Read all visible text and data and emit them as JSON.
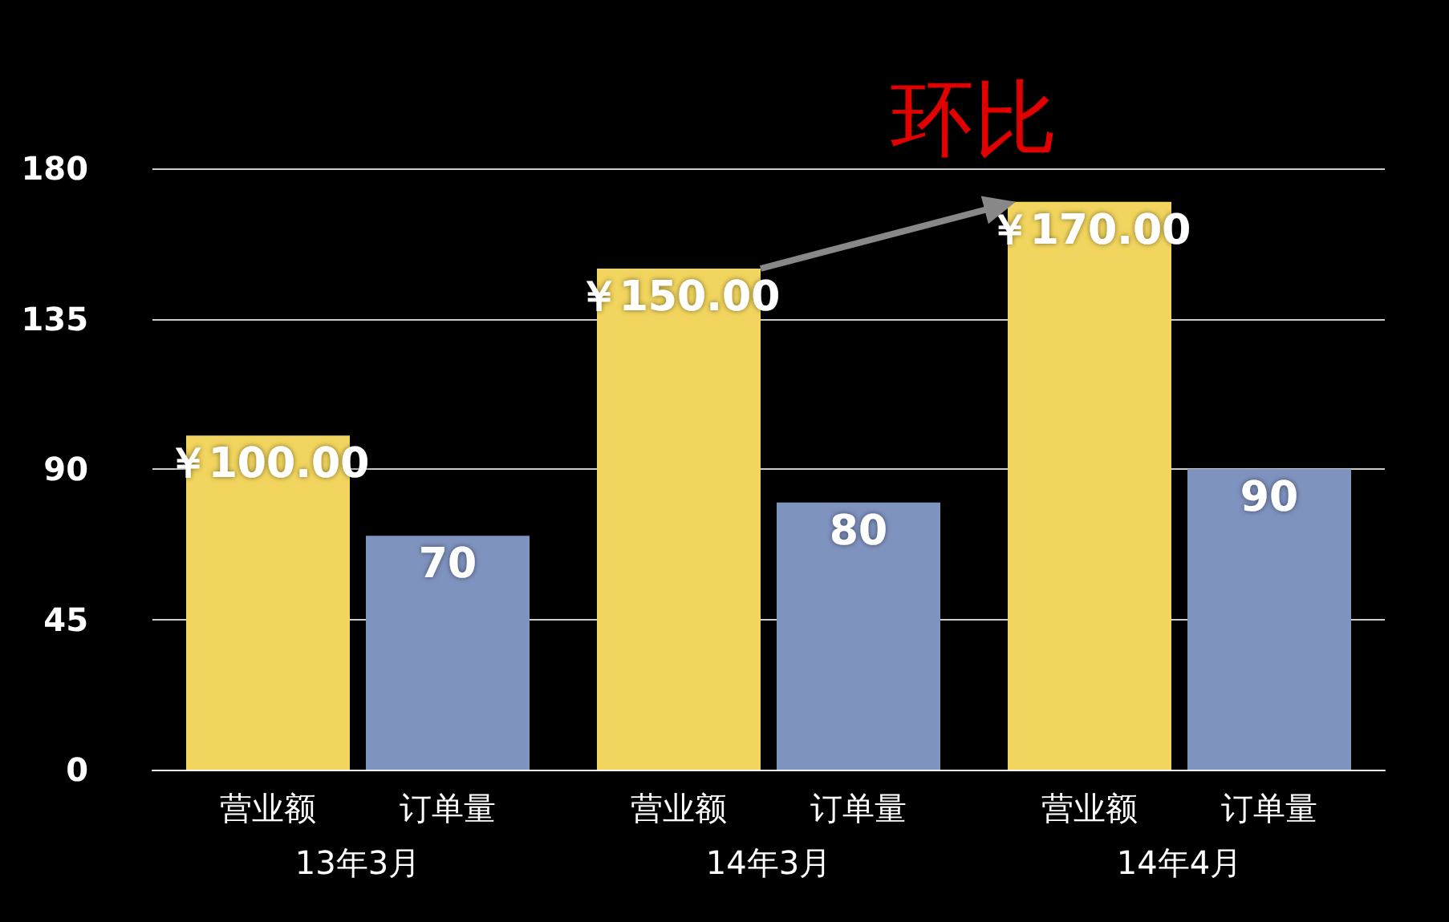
{
  "chart_data": {
    "type": "bar",
    "categories": [
      "13年3月",
      "14年3月",
      "14年4月"
    ],
    "series": [
      {
        "name": "营业额",
        "color": "#f1d55e",
        "values": [
          100,
          150,
          170
        ],
        "value_labels": [
          "￥100.00",
          "￥150.00",
          "￥170.00"
        ]
      },
      {
        "name": "订单量",
        "color": "#7f93bf",
        "values": [
          70,
          80,
          90
        ],
        "value_labels": [
          "70",
          "80",
          "90"
        ]
      }
    ],
    "ylim": [
      0,
      180
    ],
    "yticks": [
      0,
      45,
      90,
      135,
      180
    ],
    "grid": "y",
    "legend": false,
    "annotations": [
      {
        "text": "环比",
        "x": "14年4月",
        "y": 170
      }
    ]
  }
}
